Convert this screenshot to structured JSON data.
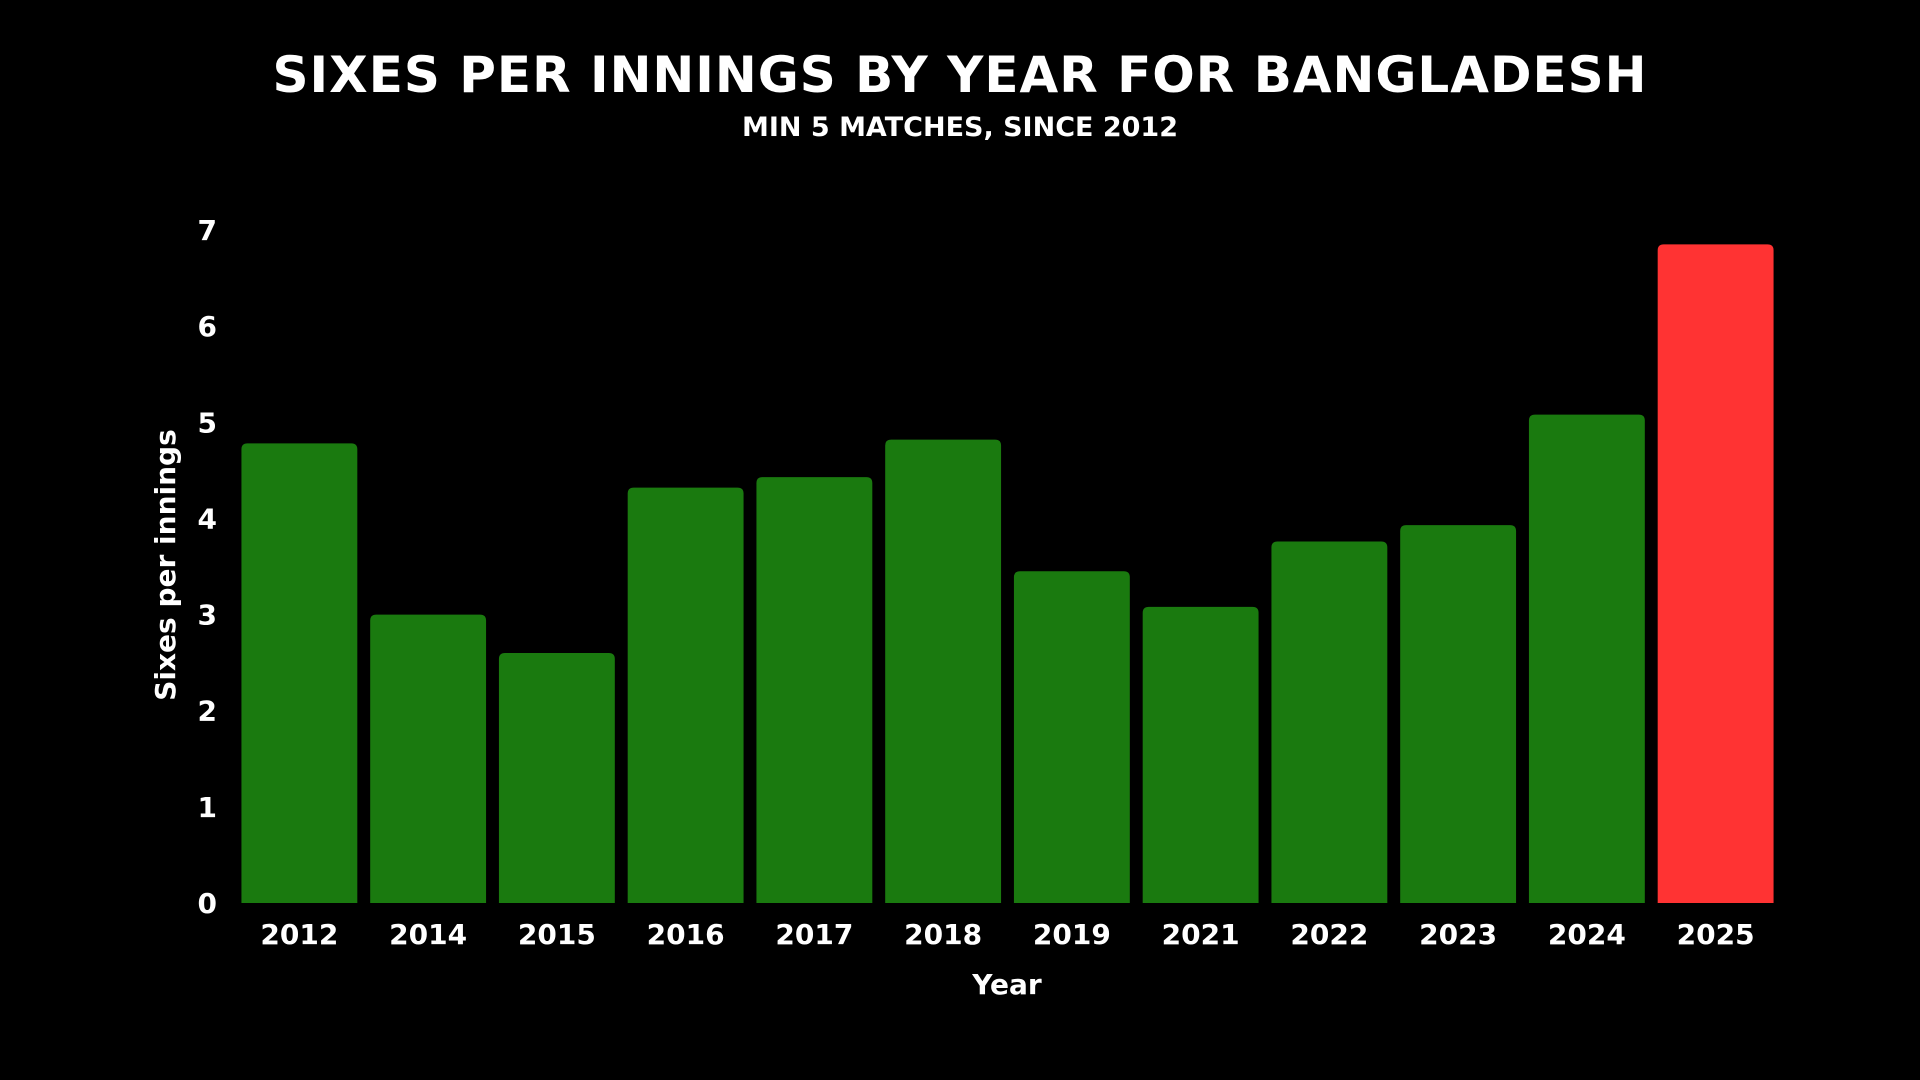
{
  "chart_data": {
    "type": "bar",
    "title": "Sixes per innings by year for Bangladesh",
    "subtitle": "Min 5 matches, since 2012",
    "xlabel": "Year",
    "ylabel": "Sixes per innings",
    "categories": [
      "2012",
      "2014",
      "2015",
      "2016",
      "2017",
      "2018",
      "2019",
      "2021",
      "2022",
      "2023",
      "2024",
      "2025"
    ],
    "values": [
      4.78,
      3.0,
      2.6,
      4.32,
      4.43,
      4.82,
      3.45,
      3.08,
      3.76,
      3.93,
      5.08,
      6.85
    ],
    "ylim": [
      0,
      7
    ],
    "yticks": [
      0,
      1,
      2,
      3,
      4,
      5,
      6,
      7
    ],
    "grid": false,
    "legend": "none",
    "colors": {
      "default_bar": "#1a7a0f",
      "highlight_bar": "#ff3333",
      "background": "#000000",
      "text": "#ffffff"
    },
    "highlight_category": "2025"
  }
}
